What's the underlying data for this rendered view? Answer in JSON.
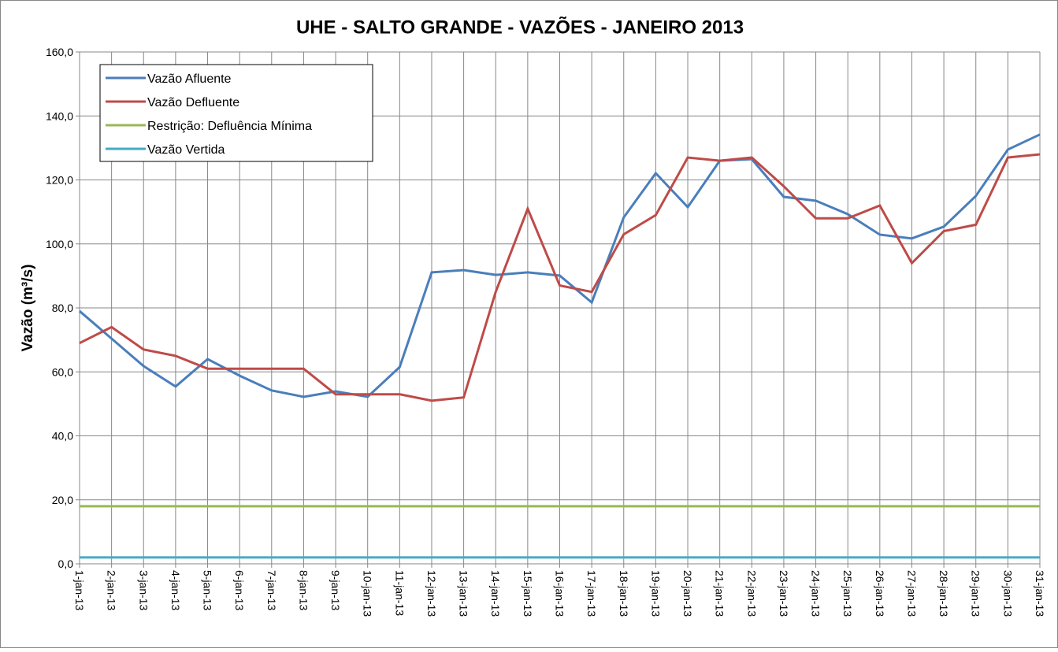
{
  "chart_data": {
    "type": "line",
    "title": "UHE - SALTO GRANDE - VAZÕES - JANEIRO 2013",
    "y_label": "Vazão (m³/s)",
    "categories": [
      "1-jan-13",
      "2-jan-13",
      "3-jan-13",
      "4-jan-13",
      "5-jan-13",
      "6-jan-13",
      "7-jan-13",
      "8-jan-13",
      "9-jan-13",
      "10-jan-13",
      "11-jan-13",
      "12-jan-13",
      "13-jan-13",
      "14-jan-13",
      "15-jan-13",
      "16-jan-13",
      "17-jan-13",
      "18-jan-13",
      "19-jan-13",
      "20-jan-13",
      "21-jan-13",
      "22-jan-13",
      "23-jan-13",
      "24-jan-13",
      "25-jan-13",
      "26-jan-13",
      "27-jan-13",
      "28-jan-13",
      "29-jan-13",
      "30-jan-13",
      "31-jan-13"
    ],
    "series": [
      {
        "name": "Vazão Afluente",
        "color": "#4a7ebb",
        "values": [
          79,
          70.4,
          61.8,
          55.4,
          64,
          58.8,
          54.2,
          52.2,
          53.9,
          52.2,
          61.5,
          91.1,
          91.8,
          90.3,
          91.1,
          90.1,
          81.7,
          108.3,
          122.1,
          111.5,
          126,
          126.5,
          114.7,
          113.5,
          109.3,
          102.9,
          101.7,
          105.4,
          115,
          129.5,
          134.2
        ]
      },
      {
        "name": "Vazão Defluente",
        "color": "#be4b48",
        "values": [
          69,
          74,
          67,
          65,
          61,
          61,
          61,
          61,
          53,
          53,
          53,
          51,
          52,
          85,
          111,
          87,
          85,
          103,
          109,
          127,
          126,
          127,
          118,
          108,
          108,
          112,
          94,
          104,
          106,
          127,
          128
        ]
      },
      {
        "name": "Restrição: Defluência Mínima",
        "color": "#98b954",
        "values": [
          18,
          18,
          18,
          18,
          18,
          18,
          18,
          18,
          18,
          18,
          18,
          18,
          18,
          18,
          18,
          18,
          18,
          18,
          18,
          18,
          18,
          18,
          18,
          18,
          18,
          18,
          18,
          18,
          18,
          18,
          18
        ]
      },
      {
        "name": "Vazão Vertida",
        "color": "#46aac5",
        "values": [
          2,
          2,
          2,
          2,
          2,
          2,
          2,
          2,
          2,
          2,
          2,
          2,
          2,
          2,
          2,
          2,
          2,
          2,
          2,
          2,
          2,
          2,
          2,
          2,
          2,
          2,
          2,
          2,
          2,
          2,
          2
        ]
      }
    ],
    "ylim": [
      0,
      160
    ],
    "yticks": [
      {
        "value": 0,
        "label": "0,0"
      },
      {
        "value": 20,
        "label": "20,0"
      },
      {
        "value": 40,
        "label": "40,0"
      },
      {
        "value": 60,
        "label": "60,0"
      },
      {
        "value": 80,
        "label": "80,0"
      },
      {
        "value": 100,
        "label": "100,0"
      },
      {
        "value": 120,
        "label": "120,0"
      },
      {
        "value": 140,
        "label": "140,0"
      },
      {
        "value": 160,
        "label": "160,0"
      }
    ],
    "grid": true,
    "legend": "upper left"
  }
}
